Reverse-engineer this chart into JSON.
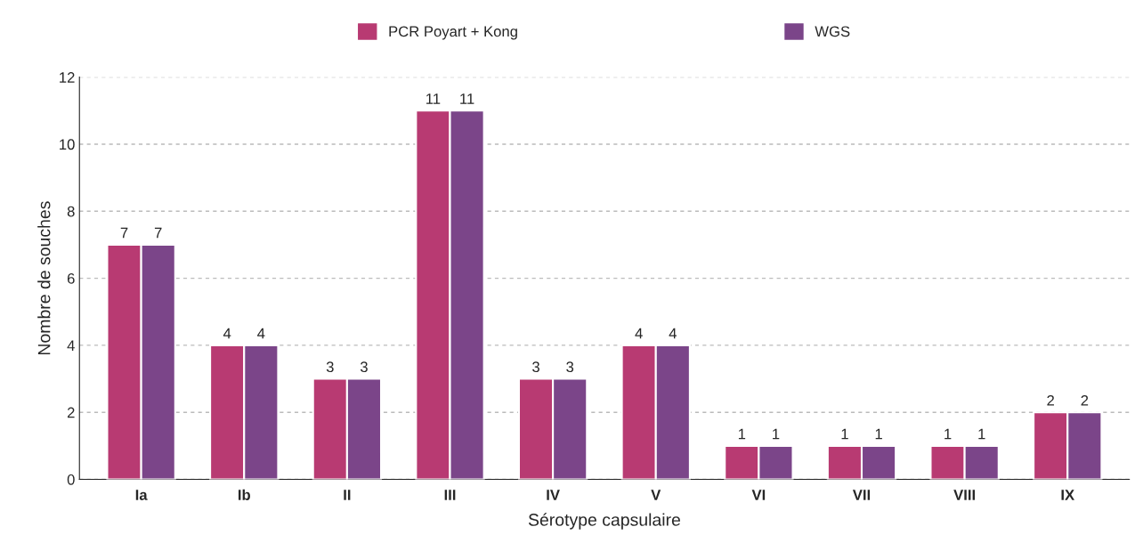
{
  "chart_data": {
    "type": "bar",
    "xlabel": "Sérotype capsulaire",
    "ylabel": "Nombre de souches",
    "categories": [
      "Ia",
      "Ib",
      "II",
      "III",
      "IV",
      "V",
      "VI",
      "VII",
      "VIII",
      "IX"
    ],
    "series": [
      {
        "name": "PCR Poyart + Kong",
        "color": "#b83a72",
        "values": [
          7,
          4,
          3,
          11,
          3,
          4,
          1,
          1,
          1,
          2
        ]
      },
      {
        "name": "WGS",
        "color": "#7b4589",
        "values": [
          7,
          4,
          3,
          11,
          3,
          4,
          1,
          1,
          1,
          2
        ]
      }
    ],
    "ylim": [
      0,
      12
    ],
    "yticks": [
      0,
      2,
      4,
      6,
      8,
      10,
      12
    ],
    "grid": "y",
    "legend": "top",
    "data_labels": true
  }
}
